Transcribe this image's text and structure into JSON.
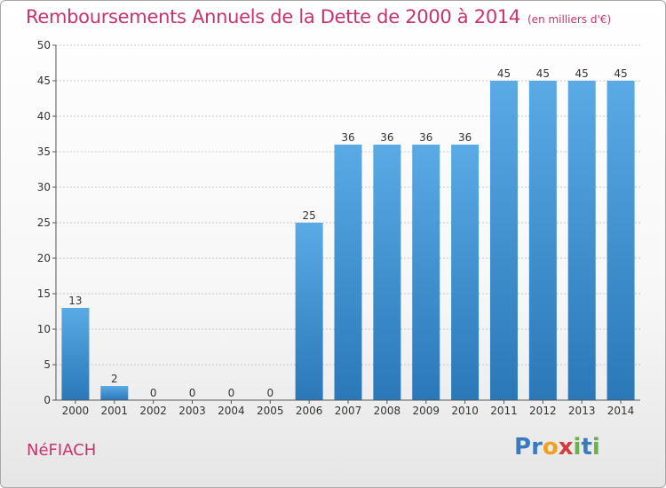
{
  "title": "Remboursements Annuels de la Dette de 2000 à 2014",
  "unit": "(en milliers d'€)",
  "commune": "NéFIACH",
  "logo": {
    "letters": [
      {
        "ch": "P",
        "color": "#3a7bbf"
      },
      {
        "ch": "r",
        "color": "#3a7bbf"
      },
      {
        "ch": "o",
        "color": "#f0a020"
      },
      {
        "ch": "x",
        "color": "#d23c3c"
      },
      {
        "ch": "i",
        "color": "#6ab04c"
      },
      {
        "ch": "t",
        "color": "#3a7bbf"
      },
      {
        "ch": "i",
        "color": "#6ab04c"
      }
    ]
  },
  "colors": {
    "title": "#c8326e",
    "bar_top": "#5aaae6",
    "bar_bottom": "#2a78b8",
    "grid": "#c4c4c4"
  },
  "chart_data": {
    "type": "bar",
    "categories": [
      "2000",
      "2001",
      "2002",
      "2003",
      "2004",
      "2005",
      "2006",
      "2007",
      "2008",
      "2009",
      "2010",
      "2011",
      "2012",
      "2013",
      "2014"
    ],
    "values": [
      13,
      2,
      0,
      0,
      0,
      0,
      25,
      36,
      36,
      36,
      36,
      45,
      45,
      45,
      45
    ],
    "data_labels": [
      "13",
      "2",
      "0",
      "0",
      "0",
      "0",
      "25",
      "36",
      "36",
      "36",
      "36",
      "45",
      "45",
      "45",
      "45"
    ],
    "ylim": [
      0,
      50
    ],
    "yticks": [
      0,
      5,
      10,
      15,
      20,
      25,
      30,
      35,
      40,
      45,
      50
    ],
    "grid": true,
    "xlabel": "",
    "ylabel": ""
  }
}
